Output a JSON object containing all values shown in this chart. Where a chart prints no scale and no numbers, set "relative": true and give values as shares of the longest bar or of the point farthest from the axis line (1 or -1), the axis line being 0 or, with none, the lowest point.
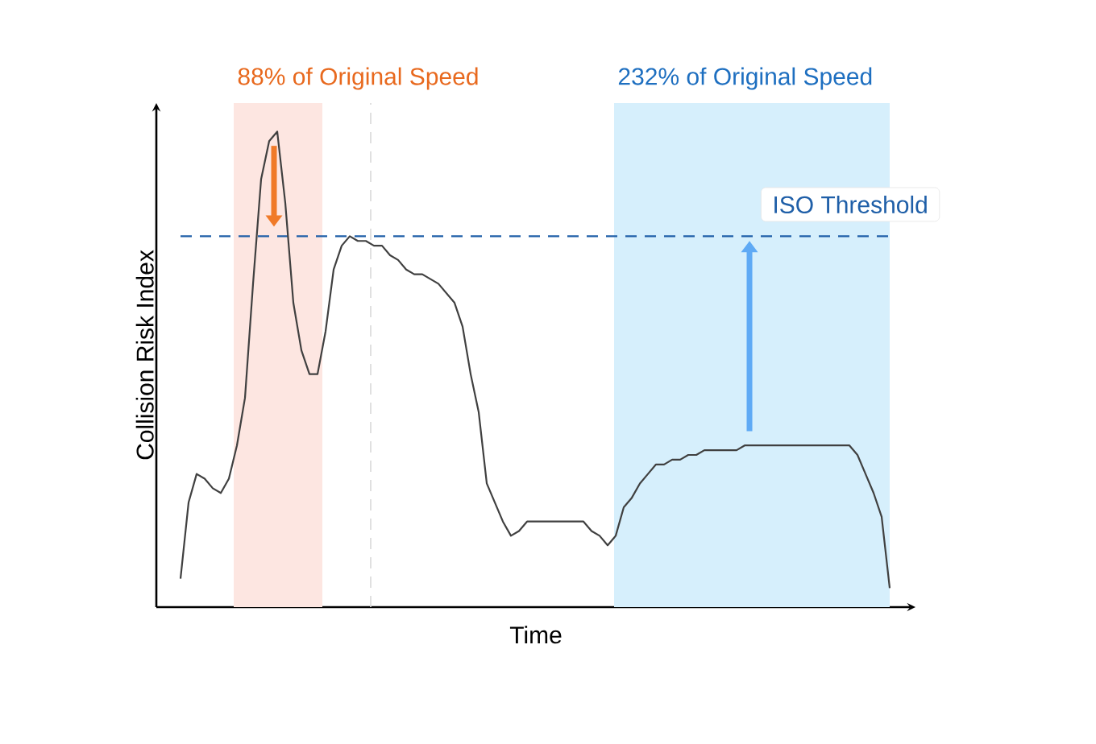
{
  "chart_data": {
    "type": "line",
    "relative": true,
    "xlabel": "Time",
    "ylabel": "Collision Risk Index",
    "categories": [
      null,
      null,
      null,
      null,
      null,
      null,
      null,
      null,
      null,
      null,
      null,
      null,
      null,
      null,
      null,
      null,
      null,
      null,
      null,
      null,
      null,
      null,
      null,
      null,
      null,
      null,
      null,
      null,
      null,
      null,
      null,
      null,
      null,
      null,
      null,
      null,
      null,
      null,
      null,
      null,
      null,
      null,
      null,
      null,
      null,
      null,
      null,
      null,
      null,
      null,
      null,
      null,
      null,
      null,
      null,
      null,
      null,
      null,
      null,
      null,
      null,
      null,
      null,
      null,
      null,
      null,
      null,
      null,
      null,
      null,
      null,
      null,
      null,
      null,
      null,
      null,
      null,
      null,
      null,
      null,
      null,
      null,
      null,
      null,
      null,
      null,
      null,
      null,
      null
    ],
    "series": [
      {
        "color": "#404040",
        "values": [
          0.06,
          0.22,
          0.28,
          0.27,
          0.25,
          0.24,
          0.27,
          0.34,
          0.44,
          0.68,
          0.9,
          0.98,
          1.0,
          0.85,
          0.64,
          0.54,
          0.49,
          0.49,
          0.58,
          0.71,
          0.76,
          0.78,
          0.77,
          0.77,
          0.76,
          0.76,
          0.74,
          0.73,
          0.71,
          0.7,
          0.7,
          0.69,
          0.68,
          0.66,
          0.64,
          0.59,
          0.49,
          0.41,
          0.26,
          0.22,
          0.18,
          0.15,
          0.16,
          0.18,
          0.18,
          0.18,
          0.18,
          0.18,
          0.18,
          0.18,
          0.18,
          0.16,
          0.15,
          0.13,
          0.15,
          0.21,
          0.23,
          0.26,
          0.28,
          0.3,
          0.3,
          0.31,
          0.31,
          0.32,
          0.32,
          0.33,
          0.33,
          0.33,
          0.33,
          0.33,
          0.34,
          0.34,
          0.34,
          0.34,
          0.34,
          0.34,
          0.34,
          0.34,
          0.34,
          0.34,
          0.34,
          0.34,
          0.34,
          0.34,
          0.32,
          0.28,
          0.24,
          0.19,
          0.04
        ]
      }
    ],
    "ref_lines": [
      {
        "axis": "y",
        "value": 0.78,
        "label": "ISO Threshold",
        "color": "#1f5fa8",
        "line_style": "dashed"
      }
    ],
    "annotations": [
      "88% of Original Speed",
      "232% of Original Speed"
    ]
  }
}
